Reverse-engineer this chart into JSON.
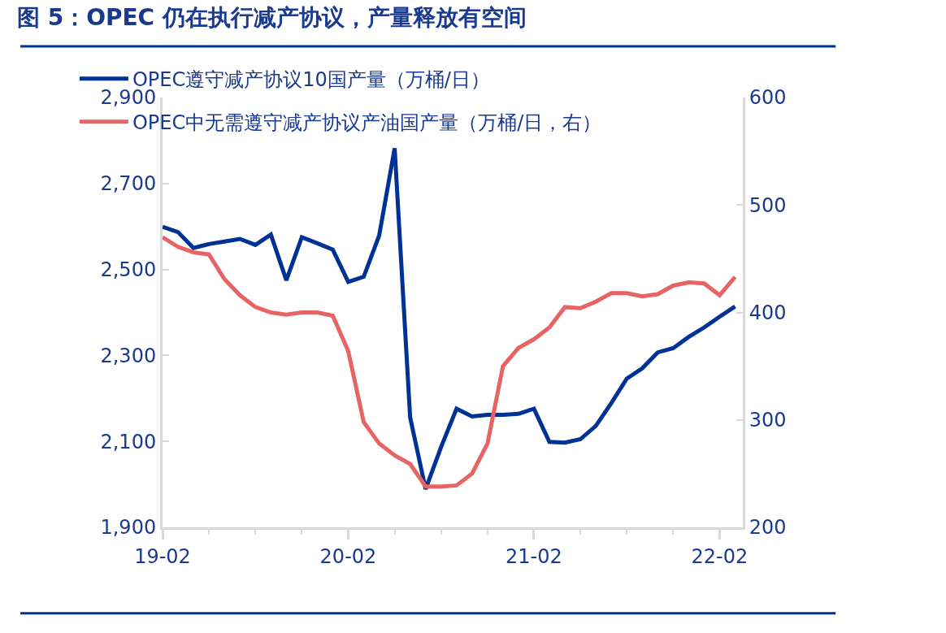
{
  "chart_data": {
    "type": "line",
    "title": "图 5：OPEC 仍在执行减产协议，产量释放有空间",
    "categories": [
      "19-02",
      null,
      null,
      null,
      null,
      null,
      null,
      null,
      null,
      null,
      null,
      null,
      "20-02",
      null,
      null,
      null,
      null,
      null,
      null,
      null,
      null,
      null,
      null,
      null,
      "21-02",
      null,
      null,
      null,
      null,
      null,
      null,
      null,
      null,
      null,
      null,
      null,
      "22-02",
      null
    ],
    "series": [
      {
        "name": "OPEC遵守减产协议10国产量（万桶/日）",
        "color": "#003296",
        "values": [
          2599,
          2587,
          2550,
          2559,
          2565,
          2571,
          2557,
          2581,
          2475,
          2575,
          2561,
          2546,
          2471,
          2483,
          2579,
          2782,
          2156,
          1989,
          2087,
          2176,
          2158,
          2162,
          2162,
          2164,
          2176,
          2099,
          2097,
          2105,
          2136,
          2189,
          2246,
          2270,
          2307,
          2317,
          2343,
          2365,
          2390,
          2414
        ]
      },
      {
        "name": "OPEC中无需遵守减产协议产油国产量（万桶/日，右）",
        "color": "#e66464",
        "axis": "y2",
        "values": [
          470,
          461,
          456,
          454,
          431,
          416,
          405,
          400,
          398,
          400,
          400,
          397,
          364,
          298,
          278,
          267,
          259,
          238,
          238,
          239,
          250,
          278,
          350,
          367,
          375,
          386,
          405,
          404,
          410,
          418,
          418,
          415,
          417,
          425,
          428,
          427,
          416,
          433
        ]
      }
    ],
    "ylim": [
      1900,
      2900
    ],
    "yticks": [
      {
        "value": 1900,
        "label": "1,900"
      },
      {
        "value": 2100,
        "label": "2,100"
      },
      {
        "value": 2300,
        "label": "2,300"
      },
      {
        "value": 2500,
        "label": "2,500"
      },
      {
        "value": 2700,
        "label": "2,700"
      },
      {
        "value": 2900,
        "label": "2,900"
      }
    ],
    "y2lim": [
      200,
      600
    ],
    "y2ticks": [
      200,
      300,
      400,
      500,
      600
    ],
    "legend": "top left",
    "marker": "none",
    "line_style": "solid"
  }
}
